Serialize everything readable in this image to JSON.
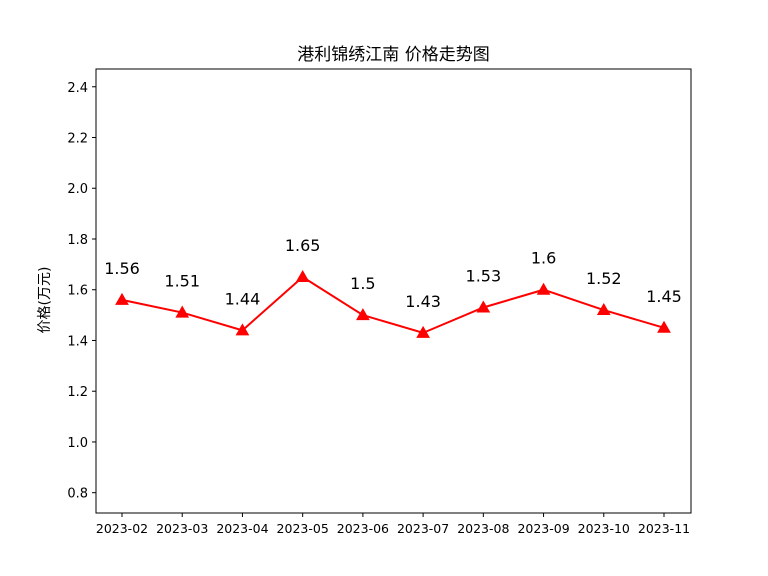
{
  "chart_data": {
    "type": "line",
    "title": "港利锦绣江南 价格走势图",
    "xlabel": "",
    "ylabel": "价格(万元)",
    "categories": [
      "2023-02",
      "2023-03",
      "2023-04",
      "2023-05",
      "2023-06",
      "2023-07",
      "2023-08",
      "2023-09",
      "2023-10",
      "2023-11"
    ],
    "series": [
      {
        "values": [
          1.56,
          1.51,
          1.44,
          1.65,
          1.5,
          1.43,
          1.53,
          1.6,
          1.52,
          1.45
        ],
        "color": "#ff0000",
        "marker": "triangle"
      }
    ],
    "data_labels": [
      "1.56",
      "1.51",
      "1.44",
      "1.65",
      "1.5",
      "1.43",
      "1.53",
      "1.6",
      "1.52",
      "1.45"
    ],
    "yticks": [
      "0.8",
      "1.0",
      "1.2",
      "1.4",
      "1.6",
      "1.8",
      "2.0",
      "2.2",
      "2.4"
    ],
    "ylim": [
      0.72,
      2.47
    ],
    "grid": false,
    "legend": "none"
  }
}
